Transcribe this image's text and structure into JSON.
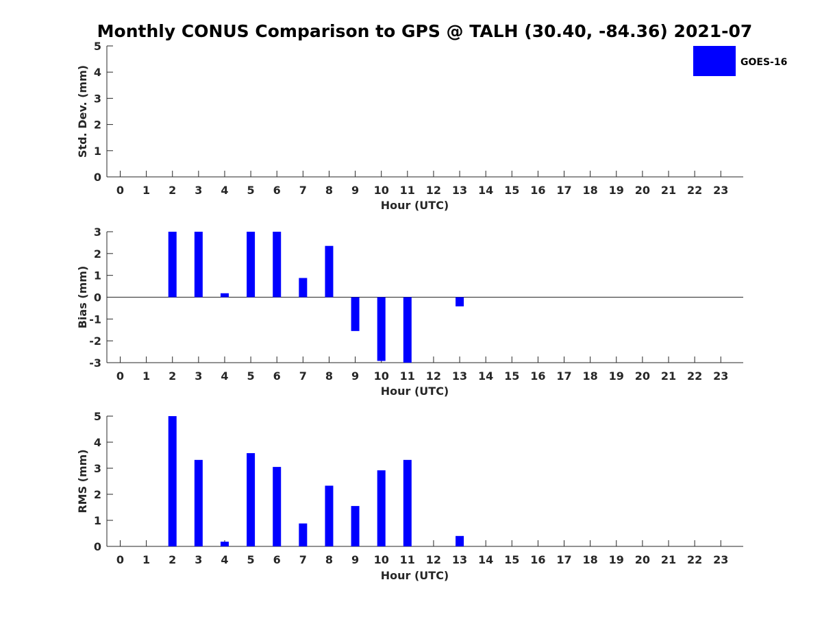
{
  "chart_data": {
    "type": "bar",
    "title": "Monthly CONUS Comparison to GPS @ TALH (30.40, -84.36) 2021-07",
    "legend": {
      "entries": [
        "GOES-16"
      ],
      "placement": "top-right",
      "color": "#0000ff"
    },
    "bar_color": "#0000ff",
    "panels": [
      {
        "id": "std",
        "ylabel": "Std. Dev. (mm)",
        "xlabel": "Hour (UTC)",
        "ylim": [
          0,
          5
        ],
        "yticks": [
          "0",
          "1",
          "2",
          "3",
          "4",
          "5"
        ],
        "x": [
          0,
          1,
          2,
          3,
          4,
          5,
          6,
          7,
          8,
          9,
          10,
          11,
          12,
          13,
          14,
          15,
          16,
          17,
          18,
          19,
          20,
          21,
          22,
          23
        ],
        "xticks": [
          "0",
          "1",
          "2",
          "3",
          "4",
          "5",
          "6",
          "7",
          "8",
          "9",
          "10",
          "11",
          "12",
          "13",
          "14",
          "15",
          "16",
          "17",
          "18",
          "19",
          "20",
          "21",
          "22",
          "23"
        ],
        "series": [
          {
            "name": "GOES-16",
            "values": [
              null,
              null,
              null,
              null,
              null,
              null,
              null,
              null,
              null,
              null,
              null,
              null,
              null,
              null,
              null,
              null,
              null,
              null,
              null,
              null,
              null,
              null,
              null,
              null
            ]
          }
        ]
      },
      {
        "id": "bias",
        "ylabel": "Bias (mm)",
        "xlabel": "Hour (UTC)",
        "ylim": [
          -3,
          3
        ],
        "yticks": [
          "-3",
          "-2",
          "-1",
          "0",
          "1",
          "2",
          "3"
        ],
        "zero_line": true,
        "x": [
          0,
          1,
          2,
          3,
          4,
          5,
          6,
          7,
          8,
          9,
          10,
          11,
          12,
          13,
          14,
          15,
          16,
          17,
          18,
          19,
          20,
          21,
          22,
          23
        ],
        "xticks": [
          "0",
          "1",
          "2",
          "3",
          "4",
          "5",
          "6",
          "7",
          "8",
          "9",
          "10",
          "11",
          "12",
          "13",
          "14",
          "15",
          "16",
          "17",
          "18",
          "19",
          "20",
          "21",
          "22",
          "23"
        ],
        "series": [
          {
            "name": "GOES-16",
            "values": [
              null,
              null,
              3.0,
              3.0,
              0.18,
              3.0,
              3.0,
              0.88,
              2.35,
              -1.55,
              -2.92,
              -3.0,
              null,
              -0.42,
              null,
              null,
              null,
              null,
              null,
              null,
              null,
              null,
              null,
              null
            ]
          }
        ]
      },
      {
        "id": "rms",
        "ylabel": "RMS (mm)",
        "xlabel": "Hour (UTC)",
        "ylim": [
          0,
          5
        ],
        "yticks": [
          "0",
          "1",
          "2",
          "3",
          "4",
          "5"
        ],
        "x": [
          0,
          1,
          2,
          3,
          4,
          5,
          6,
          7,
          8,
          9,
          10,
          11,
          12,
          13,
          14,
          15,
          16,
          17,
          18,
          19,
          20,
          21,
          22,
          23
        ],
        "xticks": [
          "0",
          "1",
          "2",
          "3",
          "4",
          "5",
          "6",
          "7",
          "8",
          "9",
          "10",
          "11",
          "12",
          "13",
          "14",
          "15",
          "16",
          "17",
          "18",
          "19",
          "20",
          "21",
          "22",
          "23"
        ],
        "series": [
          {
            "name": "GOES-16",
            "values": [
              null,
              null,
              5.0,
              3.32,
              0.18,
              3.58,
              3.05,
              0.88,
              2.33,
              1.55,
              2.92,
              3.32,
              null,
              0.4,
              null,
              null,
              null,
              null,
              null,
              null,
              null,
              null,
              null,
              null
            ]
          }
        ]
      }
    ]
  }
}
